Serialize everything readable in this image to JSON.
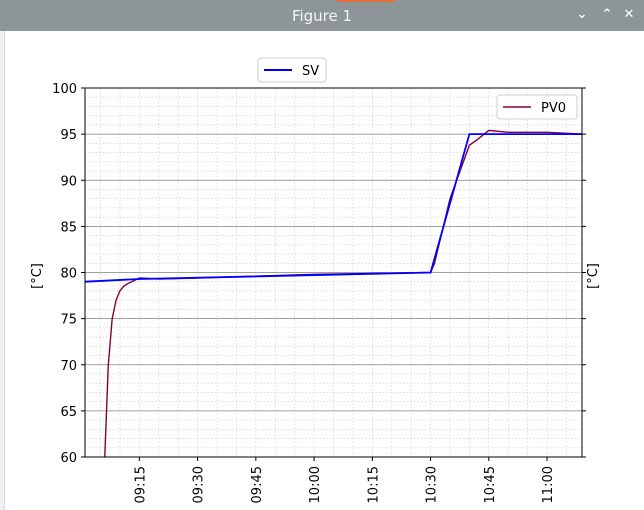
{
  "window": {
    "title": "Figure 1",
    "controls": [
      "chevron-down-icon",
      "chevron-up-icon",
      "close-icon"
    ]
  },
  "chart_data": {
    "type": "line",
    "title": "",
    "xlabel": "",
    "ylabel": "[°C]",
    "ylabel_right": "[°C]",
    "ylim": [
      60,
      100
    ],
    "yticks": [
      "60",
      "65",
      "70",
      "75",
      "80",
      "85",
      "90",
      "95",
      "100"
    ],
    "xlim": [
      "09:01",
      "11:09"
    ],
    "xticks": [
      "09:15",
      "09:30",
      "09:45",
      "10:00",
      "10:15",
      "10:30",
      "10:45",
      "11:00"
    ],
    "grid": "major and minor",
    "legend": [
      {
        "name": "SV",
        "placement": "top-center-outside"
      },
      {
        "name": "PV0",
        "placement": "top-right"
      }
    ],
    "series": [
      {
        "name": "SV",
        "color": "#0000ff",
        "x": [
          "09:01",
          "09:15",
          "10:30",
          "10:40",
          "11:09"
        ],
        "values": [
          79.0,
          79.3,
          80.0,
          95.0,
          95.0
        ]
      },
      {
        "name": "PV0",
        "color": "#800040",
        "x": [
          "09:06",
          "09:07",
          "09:08",
          "09:09",
          "09:10",
          "09:11",
          "09:12",
          "09:13",
          "09:14",
          "09:15",
          "09:20",
          "09:30",
          "09:45",
          "10:00",
          "10:15",
          "10:30",
          "10:31",
          "10:35",
          "10:40",
          "10:42",
          "10:45",
          "10:50",
          "11:00",
          "11:09"
        ],
        "values": [
          59.0,
          70.0,
          75.0,
          77.0,
          78.0,
          78.5,
          78.8,
          79.0,
          79.2,
          79.4,
          79.3,
          79.4,
          79.6,
          79.8,
          79.9,
          80.0,
          81.0,
          88.0,
          93.8,
          94.4,
          95.4,
          95.2,
          95.2,
          95.0
        ]
      }
    ]
  }
}
